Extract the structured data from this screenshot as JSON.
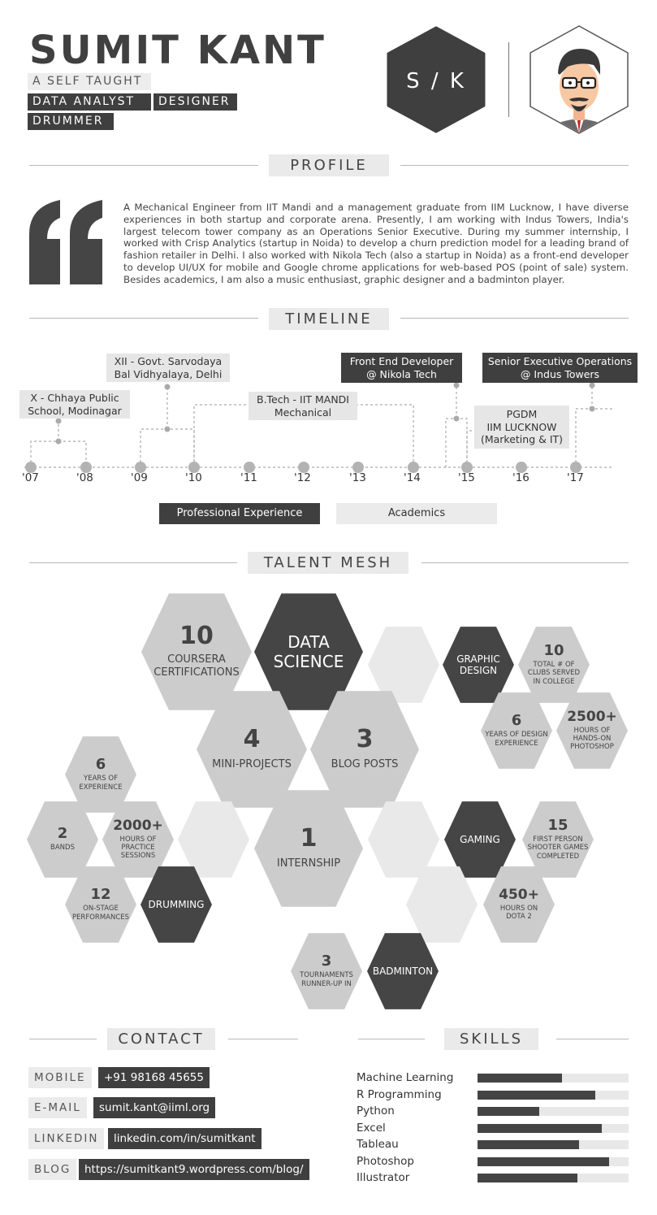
{
  "header": {
    "name": "SUMIT KANT",
    "tags": [
      "A SELF TAUGHT",
      "DATA ANALYST",
      "DESIGNER",
      "DRUMMER"
    ],
    "monogram": "S / K",
    "avatar_icon": "man-with-glasses-avatar-icon"
  },
  "profile": {
    "title": "PROFILE",
    "quote_icon": "quotation-mark-icon",
    "text": "A Mechanical Engineer from IIT Mandi and a management graduate from IIM Lucknow, I have diverse experiences in both startup and corporate arena. Presently, I am working with Indus Towers, India's largest telecom tower company as an Operations Senior Executive. During my summer internship, I worked with Crisp Analytics (startup in Noida) to develop a churn prediction model for a leading brand of fashion retailer in Delhi. I also worked with Nikola Tech (also a startup in Noida) as a front-end developer to develop UI/UX for mobile and Google chrome applications for web-based POS (point of sale) system. Besides academics, I am also a music enthusiast, graphic designer and a badminton player."
  },
  "timeline": {
    "title": "TIMELINE",
    "years": [
      "'07",
      "'08",
      "'09",
      "'10",
      "'11",
      "'12",
      "'13",
      "'14",
      "'15",
      "'16",
      "'17"
    ],
    "events": [
      {
        "line1": "X - Chhaya Public",
        "line2": "School, Modinagar"
      },
      {
        "line1": "XII - Govt. Sarvodaya",
        "line2": "Bal Vidhyalaya, Delhi"
      },
      {
        "line1": "B.Tech - IIT MANDI",
        "line2": "Mechanical"
      },
      {
        "line1": "Front End Developer",
        "line2": "@ Nikola Tech"
      },
      {
        "line1": "PGDM",
        "line2": "IIM LUCKNOW",
        "line3": "(Marketing & IT)"
      },
      {
        "line1": "Senior Executive Operations",
        "line2": "@ Indus Towers"
      }
    ],
    "legend": {
      "professional": "Professional Experience",
      "academics": "Academics"
    }
  },
  "talent": {
    "title": "TALENT MESH",
    "coursera_num": "10",
    "coursera_txt1": "COURSERA",
    "coursera_txt2": "CERTIFICATIONS",
    "data_science1": "DATA",
    "data_science2": "SCIENCE",
    "mini_num": "4",
    "mini_txt": "MINI-PROJECTS",
    "blog_num": "3",
    "blog_txt": "BLOG POSTS",
    "intern_num": "1",
    "intern_txt": "INTERNSHIP",
    "graphic1": "GRAPHIC",
    "graphic2": "DESIGN",
    "clubs_num": "10",
    "clubs_txt1": "TOTAL # OF",
    "clubs_txt2": "CLUBS SERVED",
    "clubs_txt3": "IN COLLEGE",
    "design_years_num": "6",
    "design_years_txt1": "YEARS OF DESIGN",
    "design_years_txt2": "EXPERIENCE",
    "photoshop_num": "2500+",
    "photoshop_txt1": "HOURS OF",
    "photoshop_txt2": "HANDS-ON",
    "photoshop_txt3": "PHOTOSHOP",
    "drum_years_num": "6",
    "drum_years_txt1": "YEARS OF",
    "drum_years_txt2": "EXPERIENCE",
    "bands_num": "2",
    "bands_txt": "BANDS",
    "practice_num": "2000+",
    "practice_txt1": "HOURS OF",
    "practice_txt2": "PRACTICE",
    "practice_txt3": "SESSIONS",
    "stage_num": "12",
    "stage_txt1": "ON-STAGE",
    "stage_txt2": "PERFORMANCES",
    "drumming": "DRUMMING",
    "gaming": "GAMING",
    "fps_num": "15",
    "fps_txt1": "FIRST PERSON",
    "fps_txt2": "SHOOTER GAMES",
    "fps_txt3": "COMPLETED",
    "dota_num": "450+",
    "dota_txt1": "HOURS ON",
    "dota_txt2": "DOTA 2",
    "tourn_num": "3",
    "tourn_txt1": "TOURNAMENTS",
    "tourn_txt2": "RUNNER-UP IN",
    "badminton": "BADMINTON"
  },
  "contact": {
    "title": "CONTACT",
    "items": [
      {
        "label": "MOBILE",
        "value": "+91 98168 45655"
      },
      {
        "label": "E-MAIL",
        "value": "sumit.kant@iiml.org"
      },
      {
        "label": "LINKEDIN",
        "value": "linkedin.com/in/sumitkant"
      },
      {
        "label": "BLOG",
        "value": "https://sumitkant9.wordpress.com/blog/"
      }
    ]
  },
  "skills": {
    "title": "SKILLS",
    "items": [
      {
        "name": "Machine Learning",
        "level": 0.56
      },
      {
        "name": "R Programming",
        "level": 0.78
      },
      {
        "name": "Python",
        "level": 0.41
      },
      {
        "name": "Excel",
        "level": 0.82
      },
      {
        "name": "Tableau",
        "level": 0.67
      },
      {
        "name": "Photoshop",
        "level": 0.87
      },
      {
        "name": "Illustrator",
        "level": 0.66
      }
    ]
  },
  "colors": {
    "dark": "#3f3f3f",
    "mid": "#cccccc",
    "pale": "#e9e9e9",
    "accent_tie": "#cc2222"
  }
}
